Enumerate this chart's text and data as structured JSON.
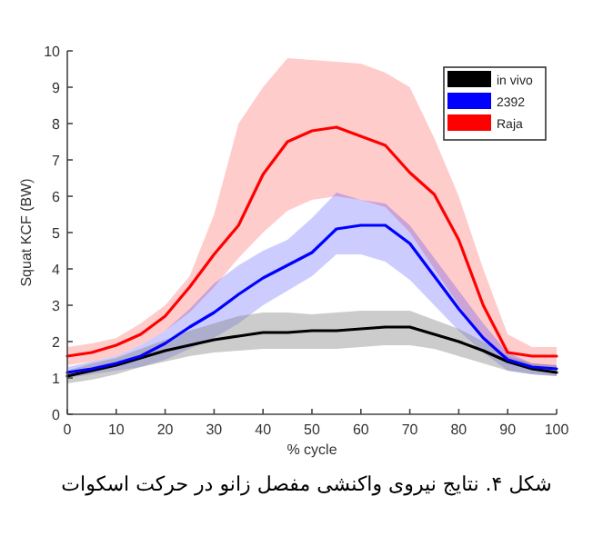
{
  "chart_data": {
    "type": "line",
    "xlabel": "% cycle",
    "ylabel": "Squat KCF (BW)",
    "x": [
      0,
      5,
      10,
      15,
      20,
      25,
      30,
      35,
      40,
      45,
      50,
      55,
      60,
      65,
      70,
      75,
      80,
      85,
      90,
      95,
      100
    ],
    "series": [
      {
        "name": "in vivo",
        "color": "#000000",
        "values": [
          1.05,
          1.2,
          1.35,
          1.55,
          1.75,
          1.9,
          2.05,
          2.15,
          2.25,
          2.25,
          2.3,
          2.3,
          2.35,
          2.4,
          2.4,
          2.2,
          2.0,
          1.75,
          1.45,
          1.25,
          1.15
        ],
        "lower": [
          0.85,
          0.95,
          1.1,
          1.3,
          1.45,
          1.6,
          1.7,
          1.75,
          1.8,
          1.8,
          1.8,
          1.8,
          1.85,
          1.9,
          1.9,
          1.8,
          1.6,
          1.4,
          1.2,
          1.1,
          1.05
        ],
        "upper": [
          1.2,
          1.4,
          1.55,
          1.8,
          2.05,
          2.3,
          2.5,
          2.7,
          2.8,
          2.8,
          2.75,
          2.8,
          2.85,
          2.85,
          2.85,
          2.6,
          2.35,
          2.0,
          1.6,
          1.4,
          1.35
        ]
      },
      {
        "name": "2392",
        "color": "#0000ff",
        "values": [
          1.15,
          1.25,
          1.4,
          1.6,
          1.95,
          2.4,
          2.8,
          3.3,
          3.75,
          4.1,
          4.45,
          5.1,
          5.2,
          5.2,
          4.7,
          3.8,
          2.9,
          2.1,
          1.5,
          1.3,
          1.25
        ],
        "lower": [
          1.0,
          1.1,
          1.2,
          1.3,
          1.5,
          1.8,
          2.1,
          2.5,
          3.0,
          3.4,
          3.8,
          4.4,
          4.4,
          4.2,
          3.7,
          3.0,
          2.3,
          1.7,
          1.2,
          1.1,
          1.05
        ],
        "upper": [
          1.3,
          1.45,
          1.6,
          1.9,
          2.3,
          2.9,
          3.6,
          4.1,
          4.5,
          4.8,
          5.4,
          6.1,
          5.9,
          5.8,
          5.2,
          4.3,
          3.4,
          2.5,
          1.7,
          1.4,
          1.35
        ]
      },
      {
        "name": "Raja",
        "color": "#ff0000",
        "values": [
          1.6,
          1.7,
          1.9,
          2.2,
          2.7,
          3.5,
          4.4,
          5.2,
          6.6,
          7.5,
          7.8,
          7.9,
          7.65,
          7.4,
          6.65,
          6.05,
          4.8,
          3.0,
          1.7,
          1.6,
          1.6
        ],
        "lower": [
          1.35,
          1.45,
          1.6,
          1.9,
          2.3,
          2.8,
          3.5,
          4.3,
          5.0,
          5.6,
          5.9,
          6.0,
          5.9,
          5.7,
          5.0,
          4.0,
          3.0,
          2.1,
          1.4,
          1.3,
          1.3
        ],
        "upper": [
          1.85,
          1.95,
          2.1,
          2.5,
          3.0,
          3.8,
          5.5,
          8.0,
          9.0,
          9.8,
          9.75,
          9.7,
          9.65,
          9.4,
          9.0,
          7.6,
          6.0,
          4.0,
          2.2,
          1.85,
          1.85
        ]
      }
    ],
    "xlim": [
      0,
      100
    ],
    "xticks": [
      0,
      10,
      20,
      30,
      40,
      50,
      60,
      70,
      80,
      90,
      100
    ],
    "ylim": [
      0,
      10
    ],
    "yticks": [
      0,
      1,
      2,
      3,
      4,
      5,
      6,
      7,
      8,
      9,
      10
    ],
    "grid": false,
    "legend": "top right",
    "marker": "none",
    "line_style": "solid",
    "annotations": [
      "شکل ۴. نتایج نیروی واکنشی مفصل زانو در حرکت اسکوات"
    ]
  }
}
